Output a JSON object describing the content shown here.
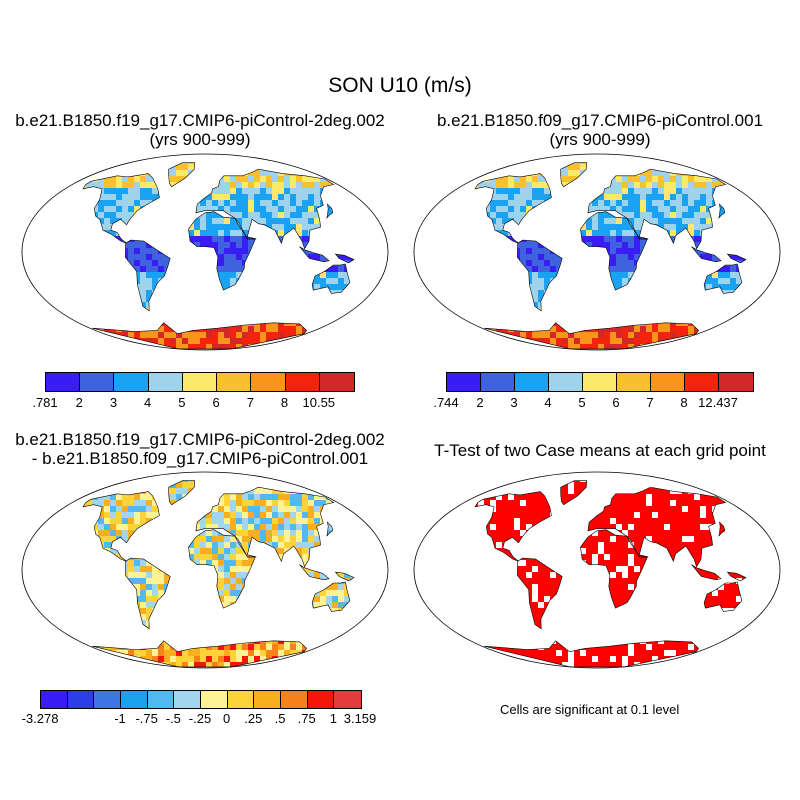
{
  "title": "SON U10 (m/s)",
  "panels": {
    "p1": {
      "title_line1": "b.e21.B1850.f19_g17.CMIP6-piControl-2deg.002",
      "title_line2": "(yrs 900-999)"
    },
    "p2": {
      "title_line1": "b.e21.B1850.f09_g17.CMIP6-piControl.001",
      "title_line2": "(yrs 900-999)"
    },
    "p3": {
      "title_line1": "b.e21.B1850.f19_g17.CMIP6-piControl-2deg.002",
      "title_line2": "- b.e21.B1850.f09_g17.CMIP6-piControl.001"
    },
    "p4": {
      "title_line1": "T-Test of two Case means at each grid point",
      "note": "Cells are significant at 0.1 level"
    }
  },
  "colorbars": {
    "cb1": {
      "colors": [
        "#3a1cf5",
        "#3f63de",
        "#1aa3f2",
        "#9fd3ec",
        "#fbe96c",
        "#f9c02d",
        "#f8961a",
        "#f5230c",
        "#d3272a"
      ],
      "labels": [
        ".781",
        "2",
        "3",
        "4",
        "5",
        "6",
        "7",
        "8",
        "10.55"
      ]
    },
    "cb2": {
      "colors": [
        "#3a1cf5",
        "#3f63de",
        "#1aa3f2",
        "#9fd3ec",
        "#fbe96c",
        "#f9c02d",
        "#f8961a",
        "#f5230c",
        "#d3272a"
      ],
      "labels": [
        ".744",
        "2",
        "3",
        "4",
        "5",
        "6",
        "7",
        "8",
        "12.437"
      ]
    },
    "cb3": {
      "colors": [
        "#3a1cf5",
        "#2d3ee8",
        "#3f75e4",
        "#18a2f0",
        "#52b8f0",
        "#a2d6ee",
        "#fdf394",
        "#fcd43a",
        "#f9ae1e",
        "#f7811a",
        "#f4160a",
        "#e43c3c"
      ],
      "labels": [
        "-3.278",
        "-1",
        "-.75",
        "-.5",
        "-.25",
        "0",
        ".25",
        ".5",
        ".75",
        "1",
        "3.159"
      ]
    }
  }
}
